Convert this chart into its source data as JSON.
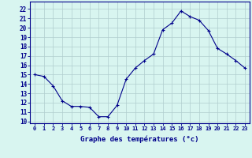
{
  "hours": [
    0,
    1,
    2,
    3,
    4,
    5,
    6,
    7,
    8,
    9,
    10,
    11,
    12,
    13,
    14,
    15,
    16,
    17,
    18,
    19,
    20,
    21,
    22,
    23
  ],
  "temps": [
    15.0,
    14.8,
    13.8,
    12.2,
    11.6,
    11.6,
    11.5,
    10.5,
    10.5,
    11.7,
    14.5,
    15.7,
    16.5,
    17.2,
    19.8,
    20.5,
    21.8,
    21.2,
    20.8,
    19.7,
    17.8,
    17.2,
    16.5,
    15.7
  ],
  "line_color": "#00008b",
  "marker": "+",
  "bg_color": "#d8f5f0",
  "grid_color": "#b0cece",
  "xlabel": "Graphe des températures (°c)",
  "xlabel_color": "#00008b",
  "ylabel_ticks": [
    10,
    11,
    12,
    13,
    14,
    15,
    16,
    17,
    18,
    19,
    20,
    21,
    22
  ],
  "xlim": [
    -0.5,
    23.5
  ],
  "ylim": [
    9.8,
    22.8
  ],
  "axis_color": "#00008b",
  "tick_label_color": "#00008b",
  "tick_fontsize": 5.0,
  "ytick_fontsize": 5.5,
  "xlabel_fontsize": 6.5
}
